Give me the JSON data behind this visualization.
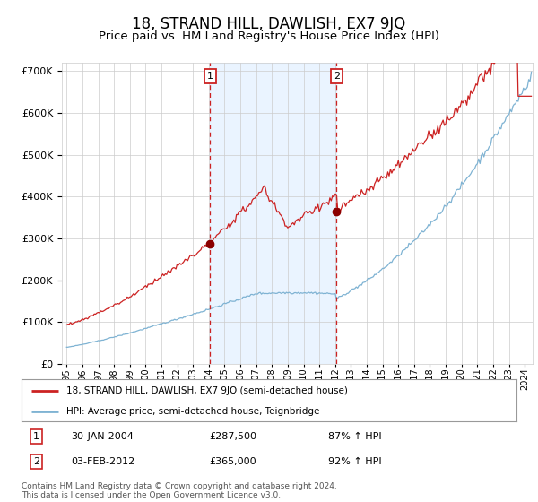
{
  "title": "18, STRAND HILL, DAWLISH, EX7 9JQ",
  "subtitle": "Price paid vs. HM Land Registry's House Price Index (HPI)",
  "title_fontsize": 12,
  "subtitle_fontsize": 9.5,
  "hpi_color": "#7fb3d3",
  "price_color": "#cc2222",
  "marker_color": "#8b0000",
  "bg_color": "#ffffff",
  "plot_bg": "#ffffff",
  "grid_color": "#cccccc",
  "shade_color": "#ddeeff",
  "ylim": [
    0,
    720000
  ],
  "sale1_date_num": 2004.08,
  "sale1_price": 287500,
  "sale1_label": "30-JAN-2004",
  "sale1_pct": "87% ↑ HPI",
  "sale2_date_num": 2012.09,
  "sale2_price": 365000,
  "sale2_label": "03-FEB-2012",
  "sale2_pct": "92% ↑ HPI",
  "legend_line1": "18, STRAND HILL, DAWLISH, EX7 9JQ (semi-detached house)",
  "legend_line2": "HPI: Average price, semi-detached house, Teignbridge",
  "footer": "Contains HM Land Registry data © Crown copyright and database right 2024.\nThis data is licensed under the Open Government Licence v3.0.",
  "annotation1_label": "1",
  "annotation2_label": "2"
}
